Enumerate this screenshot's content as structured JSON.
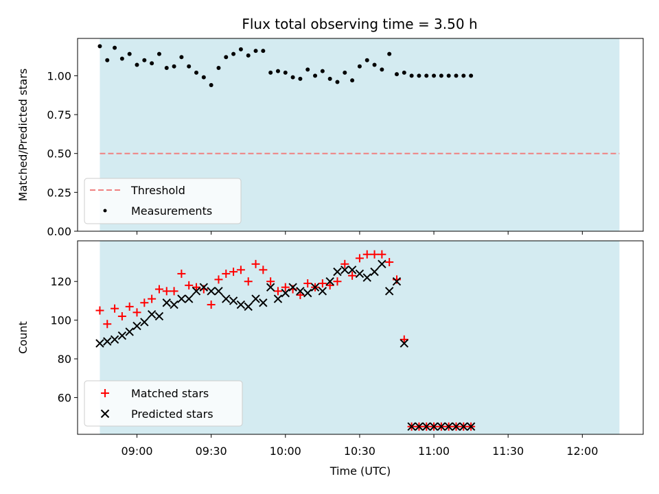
{
  "chart_data": {
    "title": "Flux total observing time = 3.50 h",
    "x_ticks": [
      "09:00",
      "09:30",
      "10:00",
      "10:30",
      "11:00",
      "11:30",
      "12:00"
    ],
    "x_tick_values": [
      9.0,
      9.5,
      10.0,
      10.5,
      11.0,
      11.5,
      12.0
    ],
    "xlabel": "Time (UTC)",
    "xlim": [
      8.6,
      12.41
    ],
    "observing_window": [
      8.75,
      12.25
    ],
    "colors": {
      "window": "#d4ebf1",
      "threshold": "#f08080",
      "measurements": "#000000",
      "matched": "#ff0000",
      "predicted": "#000000"
    },
    "panels": [
      {
        "type": "scatter",
        "ylabel": "Matched/Predicted stars",
        "ylim": [
          0,
          1.24
        ],
        "y_ticks": [
          "0.00",
          "0.25",
          "0.50",
          "0.75",
          "1.00"
        ],
        "y_tick_values": [
          0,
          0.25,
          0.5,
          0.75,
          1.0
        ],
        "legend_position": "lower-left",
        "threshold": {
          "name": "Threshold",
          "value": 0.5,
          "x_range": [
            8.75,
            12.25
          ]
        },
        "series": [
          {
            "name": "Measurements",
            "marker": "dot",
            "x": [
              8.75,
              8.8,
              8.85,
              8.9,
              8.95,
              9.0,
              9.05,
              9.1,
              9.15,
              9.2,
              9.25,
              9.3,
              9.35,
              9.4,
              9.45,
              9.5,
              9.55,
              9.6,
              9.65,
              9.7,
              9.75,
              9.8,
              9.85,
              9.9,
              9.95,
              10.0,
              10.05,
              10.1,
              10.15,
              10.2,
              10.25,
              10.3,
              10.35,
              10.4,
              10.45,
              10.5,
              10.55,
              10.6,
              10.65,
              10.7,
              10.75,
              10.8,
              10.85,
              10.9,
              10.95,
              11.0,
              11.05,
              11.1,
              11.15,
              11.2,
              11.25
            ],
            "y": [
              1.19,
              1.1,
              1.18,
              1.11,
              1.14,
              1.07,
              1.1,
              1.08,
              1.14,
              1.05,
              1.06,
              1.12,
              1.06,
              1.02,
              0.99,
              0.94,
              1.05,
              1.12,
              1.14,
              1.17,
              1.13,
              1.16,
              1.16,
              1.02,
              1.03,
              1.02,
              0.99,
              0.98,
              1.04,
              1.0,
              1.03,
              0.98,
              0.96,
              1.02,
              0.97,
              1.06,
              1.1,
              1.07,
              1.04,
              1.14,
              1.01,
              1.02,
              1.0,
              1.0,
              1.0,
              1.0,
              1.0,
              1.0,
              1.0,
              1.0,
              1.0
            ]
          }
        ]
      },
      {
        "type": "scatter",
        "ylabel": "Count",
        "ylim": [
          41,
          141
        ],
        "y_ticks": [
          "60",
          "80",
          "100",
          "120"
        ],
        "y_tick_values": [
          60,
          80,
          100,
          120
        ],
        "legend_position": "lower-left",
        "series": [
          {
            "name": "Matched stars",
            "marker": "plus",
            "x": [
              8.75,
              8.8,
              8.85,
              8.9,
              8.95,
              9.0,
              9.05,
              9.1,
              9.15,
              9.2,
              9.25,
              9.3,
              9.35,
              9.4,
              9.45,
              9.5,
              9.55,
              9.6,
              9.65,
              9.7,
              9.75,
              9.8,
              9.85,
              9.9,
              9.95,
              10.0,
              10.05,
              10.1,
              10.15,
              10.2,
              10.25,
              10.3,
              10.35,
              10.4,
              10.45,
              10.5,
              10.55,
              10.6,
              10.65,
              10.7,
              10.75,
              10.8,
              10.85,
              10.9,
              10.95,
              11.0,
              11.05,
              11.1,
              11.15,
              11.2,
              11.25
            ],
            "y": [
              105,
              98,
              106,
              102,
              107,
              104,
              109,
              111,
              116,
              115,
              115,
              124,
              118,
              117,
              116,
              108,
              121,
              124,
              125,
              126,
              120,
              129,
              126,
              120,
              115,
              117,
              116,
              113,
              119,
              117,
              119,
              118,
              120,
              129,
              123,
              132,
              134,
              134,
              134,
              130,
              121,
              90,
              45,
              45,
              45,
              45,
              45,
              45,
              45,
              45,
              45
            ]
          },
          {
            "name": "Predicted stars",
            "marker": "x",
            "x": [
              8.75,
              8.8,
              8.85,
              8.9,
              8.95,
              9.0,
              9.05,
              9.1,
              9.15,
              9.2,
              9.25,
              9.3,
              9.35,
              9.4,
              9.45,
              9.5,
              9.55,
              9.6,
              9.65,
              9.7,
              9.75,
              9.8,
              9.85,
              9.9,
              9.95,
              10.0,
              10.05,
              10.1,
              10.15,
              10.2,
              10.25,
              10.3,
              10.35,
              10.4,
              10.45,
              10.5,
              10.55,
              10.6,
              10.65,
              10.7,
              10.75,
              10.8,
              10.85,
              10.9,
              10.95,
              11.0,
              11.05,
              11.1,
              11.15,
              11.2,
              11.25
            ],
            "y": [
              88,
              89,
              90,
              92,
              94,
              97,
              99,
              103,
              102,
              109,
              108,
              111,
              111,
              115,
              117,
              115,
              115,
              111,
              110,
              108,
              107,
              111,
              109,
              117,
              111,
              114,
              117,
              115,
              114,
              117,
              115,
              120,
              125,
              126,
              126,
              124,
              122,
              125,
              129,
              115,
              120,
              88,
              45,
              45,
              45,
              45,
              45,
              45,
              45,
              45,
              45
            ]
          }
        ]
      }
    ]
  }
}
